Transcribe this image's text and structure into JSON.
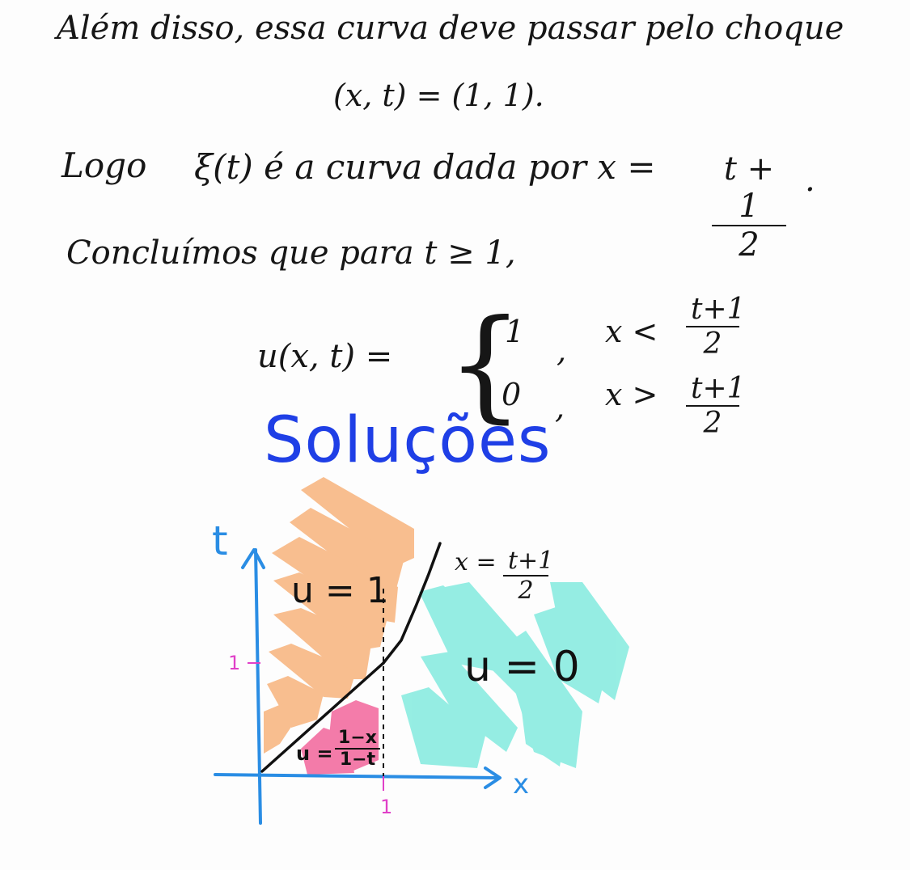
{
  "text": {
    "line1": "Além disso, essa curva deve passar pelo choque",
    "line2": "(x, t) = (1, 1).",
    "line3_start": "Logo",
    "line3_mid": "ξ(t) é a curva dada por x =",
    "frac_shock_num": "t + 1",
    "frac_shock_den": "2",
    "line3_end": ".",
    "line4": "Concluímos que para t ≥ 1,"
  },
  "piecewise": {
    "lhs": "u(x, t) =",
    "brace": "{",
    "case1_value": "1",
    "case1_comma": ",",
    "case1_cond": "x <",
    "case1_num": "t+1",
    "case1_den": "2",
    "case2_value": "0",
    "case2_comma": ",",
    "case2_cond": "x >",
    "case2_num": "t+1",
    "case2_den": "2"
  },
  "section_title": "Soluções",
  "diagram": {
    "axis_t": "t",
    "axis_x": "x",
    "tick_t": "1",
    "tick_x": "1",
    "region_u1": "u = 1",
    "region_u0": "u = 0",
    "region_mid_prefix": "u =",
    "region_mid_num": "1−x",
    "region_mid_den": "1−t",
    "shock_label_prefix": "x =",
    "shock_label_num": "t+1",
    "shock_label_den": "2",
    "colors": {
      "axis": "#2a8de4",
      "region_u1": "#f7a96b",
      "region_u0": "#5fe6d6",
      "region_mid": "#f0508e",
      "tick": "#e040c8",
      "title": "#1f3fe6"
    }
  }
}
